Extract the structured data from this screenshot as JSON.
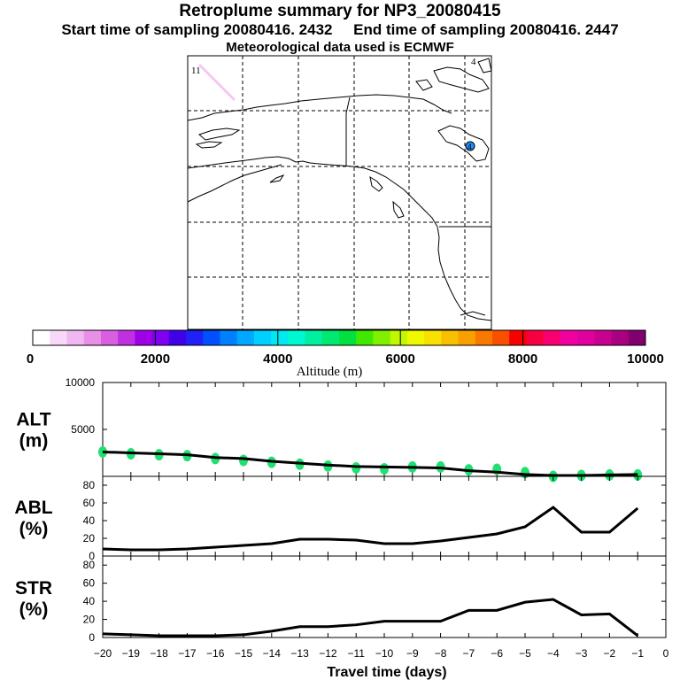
{
  "header": {
    "title": "Retroplume summary for NP3_20080415",
    "start": "Start time of sampling 20080416.  2432",
    "end": "End time of sampling 20080416.  2447",
    "met": "Meteorological data used is ECMWF"
  },
  "map": {
    "corner_label_left": "11",
    "corner_label_right": "4",
    "source_marker_label": "4",
    "colors": {
      "land_outline": "#000000",
      "plume_low": "#f4c8f4",
      "source": "#1e90ff"
    }
  },
  "colorbar": {
    "label": "Altitude (m)",
    "ticks": [
      "0",
      "2000",
      "4000",
      "6000",
      "8000",
      "10000"
    ],
    "colors": [
      "#ffffff",
      "#f8d8f8",
      "#f0b8f0",
      "#e890e8",
      "#d860e0",
      "#c030e0",
      "#a000e8",
      "#8000f0",
      "#4000e8",
      "#2020f8",
      "#0050ff",
      "#0080ff",
      "#00a8ff",
      "#00d0ff",
      "#00e8f0",
      "#00f8d0",
      "#00f0a0",
      "#00e870",
      "#00e040",
      "#40e800",
      "#80f000",
      "#c0f800",
      "#f0f800",
      "#f8e000",
      "#f8c000",
      "#f8a000",
      "#f87800",
      "#f85000",
      "#f80000",
      "#f80040",
      "#f80070",
      "#f000a0",
      "#e000a0",
      "#c80090",
      "#a80080",
      "#800070"
    ]
  },
  "chart_data": [
    {
      "type": "scatter",
      "name": "ALT",
      "ylabel": "ALT\n(m)",
      "ylabel_line1": "ALT",
      "ylabel_line2": "(m)",
      "ylim": [
        0,
        10000
      ],
      "yticks": [
        "5000",
        "10000"
      ],
      "xlim": [
        -20,
        0
      ],
      "line_x": [
        -20,
        -19,
        -18,
        -17,
        -16,
        -15,
        -14,
        -13,
        -12,
        -11,
        -10,
        -9,
        -8,
        -7,
        -6,
        -5,
        -4,
        -3,
        -2,
        -1
      ],
      "line_y": [
        2600,
        2500,
        2400,
        2300,
        2000,
        1900,
        1600,
        1400,
        1200,
        1050,
        1000,
        950,
        900,
        600,
        450,
        200,
        100,
        100,
        150,
        200
      ],
      "points_x": [
        -20,
        -19,
        -18,
        -17,
        -16,
        -15,
        -14,
        -13,
        -12,
        -11,
        -10,
        -9,
        -8,
        -7,
        -6,
        -5,
        -4,
        -3,
        -2,
        -1
      ],
      "points_y": [
        2600,
        2400,
        2300,
        2200,
        1900,
        1700,
        1500,
        1300,
        1100,
        900,
        800,
        1000,
        1000,
        700,
        750,
        400,
        0,
        100,
        150,
        150
      ],
      "point_color": "#20e070"
    },
    {
      "type": "line",
      "name": "ABL",
      "ylabel_line1": "ABL",
      "ylabel_line2": "(%)",
      "ylim": [
        0,
        90
      ],
      "yticks": [
        "0",
        "20",
        "40",
        "60",
        "80"
      ],
      "x": [
        -20,
        -19,
        -18,
        -17,
        -16,
        -15,
        -14,
        -13,
        -12,
        -11,
        -10,
        -9,
        -8,
        -7,
        -6,
        -5,
        -4,
        -3,
        -2,
        -1
      ],
      "y": [
        8,
        7,
        7,
        8,
        10,
        12,
        14,
        19,
        19,
        18,
        14,
        14,
        17,
        21,
        25,
        33,
        55,
        27,
        27,
        54
      ]
    },
    {
      "type": "line",
      "name": "STR",
      "ylabel_line1": "STR",
      "ylabel_line2": "(%)",
      "ylim": [
        0,
        90
      ],
      "yticks": [
        "0",
        "20",
        "40",
        "60",
        "80"
      ],
      "x": [
        -20,
        -19,
        -18,
        -17,
        -16,
        -15,
        -14,
        -13,
        -12,
        -11,
        -10,
        -9,
        -8,
        -7,
        -6,
        -5,
        -4,
        -3,
        -2,
        -1
      ],
      "y": [
        4,
        3,
        2,
        2,
        2,
        3,
        7,
        12,
        12,
        14,
        18,
        18,
        18,
        30,
        30,
        39,
        42,
        25,
        26,
        2
      ]
    }
  ],
  "xaxis": {
    "label": "Travel time (days)",
    "ticks": [
      "−20",
      "−19",
      "−18",
      "−17",
      "−16",
      "−15",
      "−14",
      "−13",
      "−12",
      "−11",
      "−10",
      "−9",
      "−8",
      "−7",
      "−6",
      "−5",
      "−4",
      "−3",
      "−2",
      "−1",
      "0"
    ]
  }
}
